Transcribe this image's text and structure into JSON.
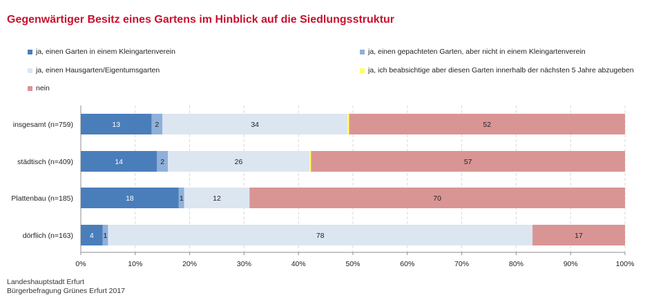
{
  "title": "Gegenwärtiger Besitz eines Gartens im Hinblick auf die Siedlungsstruktur",
  "colors": {
    "title": "#c8102e",
    "kleingarten": "#4a7ebb",
    "gepachtet": "#8fb0d9",
    "hausgarten": "#dce6f1",
    "abgeben": "#ffff66",
    "nein": "#d99594"
  },
  "footer": {
    "line1": "Landeshauptstadt Erfurt",
    "line2": "Bürgerbefragung Grünes Erfurt 2017"
  },
  "chart_data": {
    "type": "bar",
    "orientation": "horizontal",
    "stacked": true,
    "categories": [
      "insgesamt (n=759)",
      "städtisch (n=409)",
      "Plattenbau (n=185)",
      "dörflich (n=163)"
    ],
    "series": [
      {
        "name": "ja, einen Garten in einem Kleingartenverein",
        "color": "#4a7ebb",
        "values": [
          13,
          14,
          18,
          4
        ],
        "labels": [
          "13",
          "14",
          "18",
          "4"
        ]
      },
      {
        "name": "ja, einen gepachteten Garten, aber nicht in einem Kleingartenverein",
        "color": "#8fb0d9",
        "values": [
          2,
          2,
          1,
          1
        ],
        "labels": [
          "2",
          "2",
          "1",
          "1"
        ]
      },
      {
        "name": "ja, einen Hausgarten/Eigentumsgarten",
        "color": "#dce6f1",
        "values": [
          34,
          26,
          12,
          78
        ],
        "labels": [
          "34",
          "26",
          "12",
          "78"
        ]
      },
      {
        "name": "ja, ich beabsichtige aber diesen Garten innerhalb der nächsten 5 Jahre abzugeben",
        "color": "#ffff66",
        "values": [
          0.3,
          0.3,
          0,
          0
        ],
        "labels": [
          "",
          "",
          "",
          ""
        ]
      },
      {
        "name": "nein",
        "color": "#d99594",
        "values": [
          52,
          57,
          70,
          17
        ],
        "labels": [
          "52",
          "57",
          "70",
          "17"
        ]
      }
    ],
    "xlim": [
      0,
      100
    ],
    "xticks": [
      "0%",
      "10%",
      "20%",
      "30%",
      "40%",
      "50%",
      "60%",
      "70%",
      "80%",
      "90%",
      "100%"
    ],
    "grid": true,
    "legend_position": "top"
  }
}
